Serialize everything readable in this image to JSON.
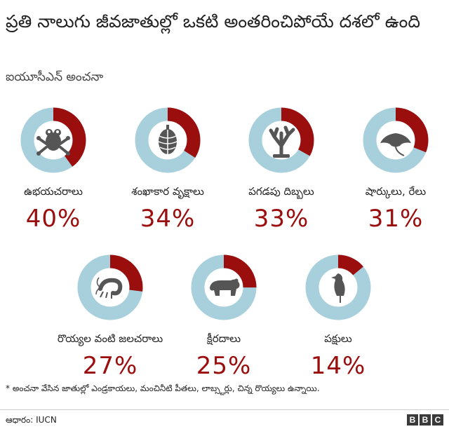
{
  "header": {
    "title": "ప్రతి నాలుగు జీవజాతుల్లో ఒకటి అంతరించిపోయే దశలో ఉంది",
    "subtitle": "ఐయూసీఎన్ అంచనా"
  },
  "colors": {
    "threatened": "#9a0e0e",
    "remaining": "#a7d0dc",
    "icon": "#555555"
  },
  "chart_data": {
    "type": "pie",
    "title": "ప్రతి నాలుగు జీవజాతుల్లో ఒకటి అంతరించిపోయే దశలో ఉంది",
    "subtitle": "ఐయూసీఎన్ అంచనా",
    "unit": "%",
    "items": [
      {
        "label": "ఉభయచరాలు",
        "value": 40,
        "display": "40%",
        "icon": "frog-icon"
      },
      {
        "label": "శంఖాకార వృక్షాలు",
        "value": 34,
        "display": "34%",
        "icon": "pine-cone-icon"
      },
      {
        "label": "పగడపు దిబ్బలు",
        "value": 33,
        "display": "33%",
        "icon": "coral-icon"
      },
      {
        "label": "షార్కులు, రేలు",
        "value": 31,
        "display": "31%",
        "icon": "ray-icon"
      },
      {
        "label": "రొయ్యల వంటి జలచరాలు",
        "value": 27,
        "display": "27%",
        "icon": "shrimp-icon"
      },
      {
        "label": "క్షీరదాలు",
        "value": 25,
        "display": "25%",
        "icon": "bear-icon"
      },
      {
        "label": "పక్షులు",
        "value": 14,
        "display": "14%",
        "icon": "bird-icon"
      }
    ]
  },
  "footer": {
    "footnote": "* అంచనా వేసిన జాతుల్లో ఎండ్రకాయలు, మంచినీటి పీతలు, లాబ్స్టర్లు, చిన్న రొయ్యలు ఉన్నాయి.",
    "source": "ఆధారం: IUCN",
    "logo_letters": [
      "B",
      "B",
      "C"
    ]
  }
}
